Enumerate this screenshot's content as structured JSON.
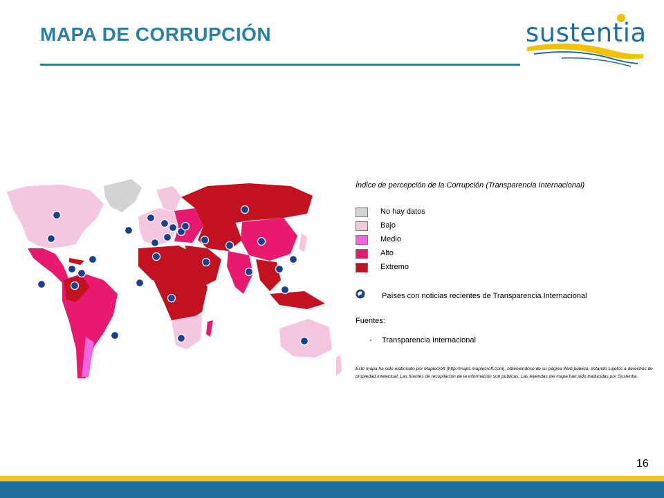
{
  "header": {
    "title": "MAPA DE CORRUPCIÓN",
    "logo_text": "sustentia"
  },
  "colors": {
    "title": "#2a7fa6",
    "no_data": "#d3d3d3",
    "bajo": "#f5c6e0",
    "medio": "#f066e0",
    "alto": "#e8196e",
    "extremo": "#c2121f",
    "footer_yellow": "#f2c51c",
    "footer_blue": "#1e6d9a"
  },
  "legend": {
    "title": "Índice de percepción de la Corrupción (Transparencia Internacional)",
    "items": [
      {
        "label": "No hay datos",
        "color": "#d3d3d3"
      },
      {
        "label": "Bajo",
        "color": "#f5c6e0"
      },
      {
        "label": "Medio",
        "color": "#f066e0"
      },
      {
        "label": "Alto",
        "color": "#e8196e"
      },
      {
        "label": "Extremo",
        "color": "#c2121f"
      }
    ],
    "news_icon": "globe-news-icon",
    "news_label": "Países con noticias recientes de Transparencia Internacional"
  },
  "sources": {
    "label": "Fuentes:",
    "items": [
      "Transparencia Internacional"
    ]
  },
  "note": "Este mapa ha sido elaborado por Maplecroft (http://maps.maplecroft.com), obteniéndose de su página Web pública, estando sujetos a derechos de propiedad intelectual. Las fuentes de recopilación de la información son públicas. Las leyendas del mapa han sido traducidas por Sustentia.",
  "page_number": "16"
}
